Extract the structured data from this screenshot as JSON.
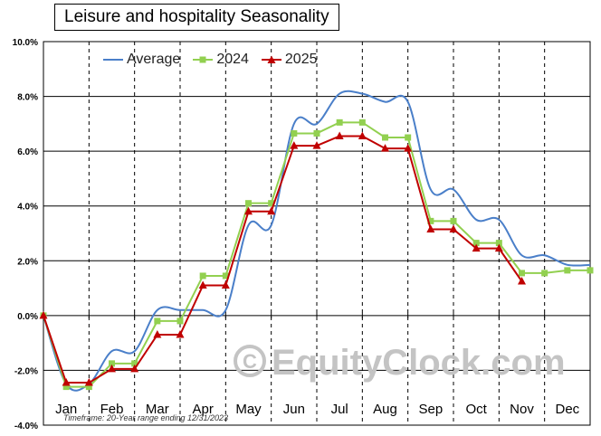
{
  "title": "Leisure and hospitality Seasonality",
  "footnote": "Timeframe: 20-Year range ending 12/31/2023",
  "watermark": "EquityClock.com",
  "watermark_icon": "copyright-icon",
  "colors": {
    "average": "#4a7fc9",
    "y2024": "#92d050",
    "y2025": "#c00000",
    "grid": "#000000"
  },
  "chart_data": {
    "type": "line",
    "title": "Leisure and hospitality Seasonality",
    "ylabel": "",
    "xlabel": "",
    "ylim": [
      -4,
      10
    ],
    "y_ticks": [
      "-4.0%",
      "-2.0%",
      "0.0%",
      "2.0%",
      "4.0%",
      "6.0%",
      "8.0%",
      "10.0%"
    ],
    "grid": true,
    "legend_position": "top-left",
    "categories": [
      "Jan",
      "Feb",
      "Mar",
      "Apr",
      "May",
      "Jun",
      "Jul",
      "Aug",
      "Sep",
      "Oct",
      "Nov",
      "Dec"
    ],
    "series": [
      {
        "name": "Average",
        "style": "smooth-line",
        "x": [
          0,
          0.5,
          1.0,
          1.5,
          2.0,
          2.5,
          3.0,
          3.5,
          4.0,
          4.5,
          5.0,
          5.5,
          6.0,
          6.5,
          7.0,
          7.5,
          8.0,
          8.5,
          9.0,
          9.5,
          10.0,
          10.5,
          11.0,
          11.5,
          12.0
        ],
        "values": [
          0.0,
          -2.5,
          -2.5,
          -1.3,
          -1.3,
          0.2,
          0.2,
          0.2,
          0.2,
          3.3,
          3.3,
          7.0,
          7.0,
          8.1,
          8.1,
          7.8,
          7.8,
          4.6,
          4.6,
          3.5,
          3.5,
          2.2,
          2.2,
          1.85,
          1.85
        ]
      },
      {
        "name": "2024",
        "marker": "square",
        "x": [
          0,
          0.5,
          1.0,
          1.5,
          2.0,
          2.5,
          3.0,
          3.5,
          4.0,
          4.5,
          5.0,
          5.5,
          6.0,
          6.5,
          7.0,
          7.5,
          8.0,
          8.5,
          9.0,
          9.5,
          10.0,
          10.5,
          11.0,
          11.5,
          12.0
        ],
        "values": [
          0.0,
          -2.6,
          -2.6,
          -1.75,
          -1.75,
          -0.2,
          -0.2,
          1.45,
          1.45,
          4.1,
          4.1,
          6.65,
          6.65,
          7.05,
          7.05,
          6.5,
          6.5,
          3.45,
          3.45,
          2.65,
          2.65,
          1.55,
          1.55,
          1.65,
          1.65
        ]
      },
      {
        "name": "2025",
        "marker": "triangle",
        "x": [
          0,
          0.5,
          1.0,
          1.5,
          2.0,
          2.5,
          3.0,
          3.5,
          4.0,
          4.5,
          5.0,
          5.5,
          6.0,
          6.5,
          7.0,
          7.5,
          8.0,
          8.5,
          9.0,
          9.5,
          10.0,
          10.5
        ],
        "values": [
          0.0,
          -2.45,
          -2.45,
          -1.95,
          -1.95,
          -0.7,
          -0.7,
          1.1,
          1.1,
          3.8,
          3.8,
          6.2,
          6.2,
          6.55,
          6.55,
          6.1,
          6.1,
          3.15,
          3.15,
          2.45,
          2.45,
          1.25
        ]
      }
    ]
  }
}
